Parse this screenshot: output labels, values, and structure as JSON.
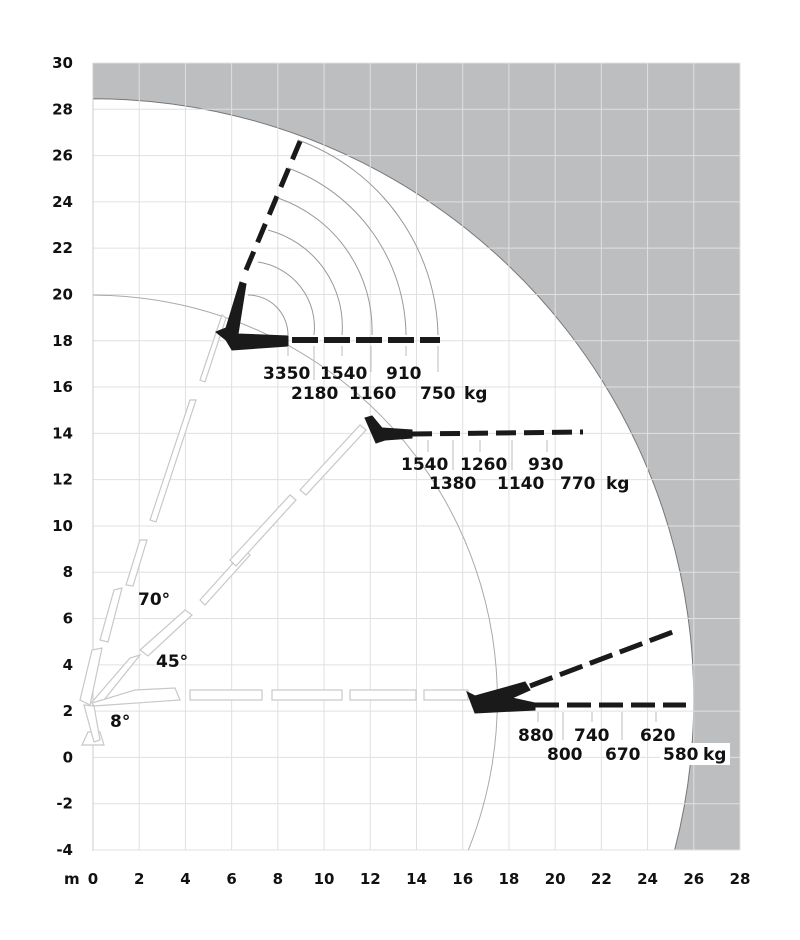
{
  "axes": {
    "x_unit": "m",
    "x_ticks": [
      "0",
      "2",
      "4",
      "6",
      "8",
      "10",
      "12",
      "14",
      "16",
      "18",
      "20",
      "22",
      "24",
      "26",
      "28"
    ],
    "y_ticks": [
      "30",
      "28",
      "26",
      "24",
      "22",
      "20",
      "18",
      "16",
      "14",
      "12",
      "10",
      "8",
      "6",
      "4",
      "2",
      "0",
      "-2",
      "-4"
    ],
    "xlim": [
      0,
      28
    ],
    "ylim": [
      -4,
      30
    ],
    "grid": true
  },
  "angles": [
    "70°",
    "45°",
    "8°"
  ],
  "load_groups": [
    {
      "row1": [
        "3350",
        "1540",
        "910"
      ],
      "row2": [
        "2180",
        "1160",
        "750"
      ],
      "unit": "kg"
    },
    {
      "row1": [
        "1540",
        "1260",
        "930"
      ],
      "row2": [
        "1380",
        "1140",
        "770"
      ],
      "unit": "kg"
    },
    {
      "row1": [
        "880",
        "740",
        "620"
      ],
      "row2": [
        "800",
        "670",
        "580"
      ],
      "unit": "kg"
    }
  ],
  "colors": {
    "out_of_range": "#bdbec0",
    "boom": "#1a1a1a",
    "grid": "#e2e2e2"
  }
}
